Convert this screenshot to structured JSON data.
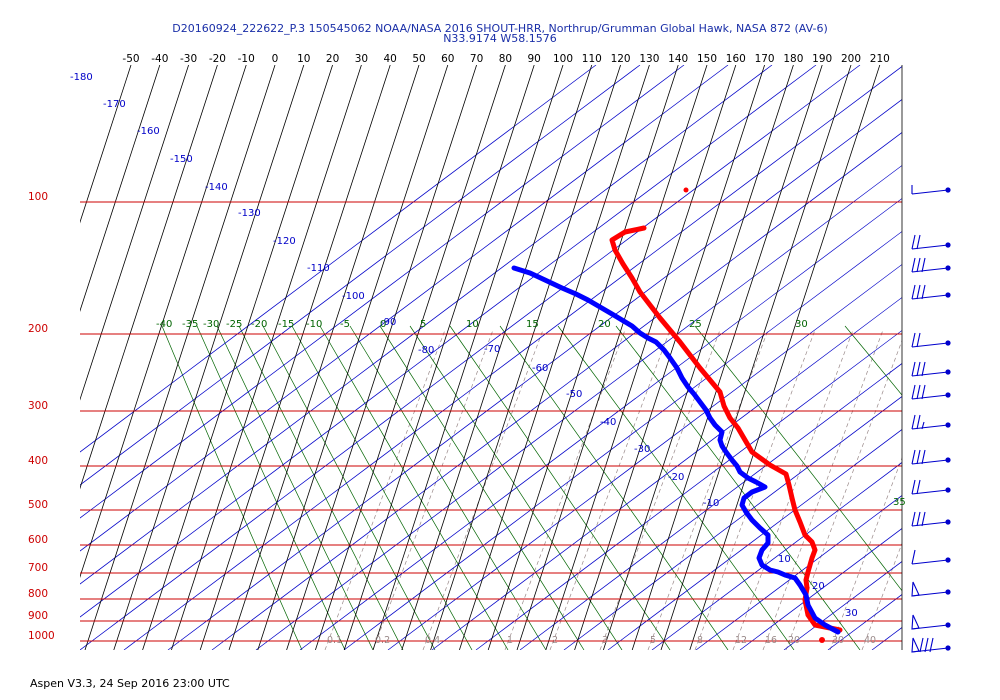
{
  "header": {
    "title": "D20160924_222622_P.3 150545062 NOAA/NASA 2016 SHOUT-HRR, Northrup/Grumman Global Hawk, NASA 872 (AV-6)",
    "location": "N33.9174 W58.1576"
  },
  "footer": {
    "text": "Aspen V3.3, 24 Sep 2016  23:00 UTC"
  },
  "chart_data": {
    "type": "line",
    "title": "",
    "colors": {
      "temperature": "#ff0000",
      "dewpoint": "#0000ff",
      "isobar": "#cc0000",
      "isotherm": "#000000",
      "dry_adiabat": "#0000c8",
      "moist_adiabat": "#006400",
      "mixing_ratio": "#9a8a8a",
      "wind_barb": "#0000cc"
    },
    "temperature_axis_labels": [
      "-50",
      "-40",
      "-30",
      "-20",
      "-10",
      "0",
      "10",
      "20",
      "30",
      "40",
      "50",
      "60",
      "70",
      "80",
      "90",
      "100",
      "110",
      "120",
      "130",
      "140",
      "150",
      "160",
      "170",
      "180",
      "190",
      "200",
      "210"
    ],
    "pressure_axis_labels": [
      "100",
      "200",
      "300",
      "400",
      "500",
      "600",
      "700",
      "800",
      "900",
      "1000"
    ],
    "dry_adiabat_labels": [
      "-180",
      "-170",
      "-160",
      "-150",
      "-140",
      "-130",
      "-120",
      "-110",
      "-100",
      "-90",
      "-80",
      "-70",
      "-60",
      "-50",
      "-40",
      "-30",
      "-20",
      "-10",
      "10",
      "20",
      "30"
    ],
    "moist_adiabat_labels": [
      "-40",
      "-35",
      "-30",
      "-25",
      "-20",
      "-15",
      "-10",
      "-5",
      "0",
      "5",
      "10",
      "15",
      "20",
      "25",
      "30",
      "35"
    ],
    "mixing_ratio_labels": [
      "0.1",
      "0.2",
      "0.4",
      "1",
      "2",
      "3",
      "5",
      "8",
      "12",
      "16",
      "20",
      "30",
      "40"
    ],
    "series": [
      {
        "name": "temperature",
        "points": [
          [
            840,
            630
          ],
          [
            815,
            625
          ],
          [
            808,
            615
          ],
          [
            805,
            600
          ],
          [
            807,
            588
          ],
          [
            806,
            580
          ],
          [
            808,
            572
          ],
          [
            810,
            565
          ],
          [
            812,
            558
          ],
          [
            815,
            550
          ],
          [
            812,
            542
          ],
          [
            805,
            535
          ],
          [
            800,
            522
          ],
          [
            795,
            510
          ],
          [
            792,
            498
          ],
          [
            789,
            485
          ],
          [
            786,
            474
          ],
          [
            770,
            465
          ],
          [
            752,
            452
          ],
          [
            745,
            440
          ],
          [
            738,
            428
          ],
          [
            730,
            418
          ],
          [
            724,
            406
          ],
          [
            720,
            392
          ],
          [
            710,
            380
          ],
          [
            700,
            368
          ],
          [
            690,
            355
          ],
          [
            680,
            342
          ],
          [
            670,
            330
          ],
          [
            660,
            318
          ],
          [
            650,
            305
          ],
          [
            640,
            292
          ],
          [
            632,
            278
          ],
          [
            623,
            264
          ],
          [
            615,
            250
          ],
          [
            612,
            240
          ],
          [
            625,
            232
          ],
          [
            644,
            228
          ]
        ]
      },
      {
        "name": "dewpoint",
        "points": [
          [
            838,
            632
          ],
          [
            825,
            625
          ],
          [
            815,
            618
          ],
          [
            808,
            605
          ],
          [
            806,
            595
          ],
          [
            800,
            585
          ],
          [
            795,
            578
          ],
          [
            785,
            575
          ],
          [
            778,
            572
          ],
          [
            770,
            570
          ],
          [
            762,
            565
          ],
          [
            759,
            558
          ],
          [
            762,
            550
          ],
          [
            768,
            543
          ],
          [
            768,
            535
          ],
          [
            760,
            528
          ],
          [
            752,
            520
          ],
          [
            746,
            512
          ],
          [
            742,
            505
          ],
          [
            744,
            498
          ],
          [
            752,
            492
          ],
          [
            765,
            487
          ],
          [
            756,
            482
          ],
          [
            748,
            478
          ],
          [
            740,
            472
          ],
          [
            737,
            466
          ],
          [
            732,
            460
          ],
          [
            726,
            452
          ],
          [
            722,
            446
          ],
          [
            720,
            440
          ],
          [
            722,
            432
          ],
          [
            715,
            425
          ],
          [
            710,
            418
          ],
          [
            706,
            410
          ],
          [
            700,
            402
          ],
          [
            694,
            394
          ],
          [
            688,
            387
          ],
          [
            682,
            378
          ],
          [
            677,
            368
          ],
          [
            670,
            358
          ],
          [
            664,
            350
          ],
          [
            656,
            342
          ],
          [
            648,
            338
          ],
          [
            640,
            333
          ],
          [
            632,
            326
          ],
          [
            622,
            320
          ],
          [
            612,
            314
          ],
          [
            600,
            307
          ],
          [
            588,
            300
          ],
          [
            576,
            294
          ],
          [
            562,
            288
          ],
          [
            545,
            280
          ],
          [
            530,
            273
          ],
          [
            514,
            268
          ]
        ]
      }
    ],
    "wind_barbs": [
      {
        "y": 190,
        "half": 0,
        "full": 0,
        "flags": 0
      },
      {
        "y": 245,
        "half": 0,
        "full": 2,
        "flags": 0
      },
      {
        "y": 268,
        "half": 0,
        "full": 3,
        "flags": 0
      },
      {
        "y": 295,
        "half": 0,
        "full": 3,
        "flags": 0
      },
      {
        "y": 343,
        "half": 0,
        "full": 2,
        "flags": 0
      },
      {
        "y": 372,
        "half": 0,
        "full": 3,
        "flags": 0
      },
      {
        "y": 395,
        "half": 0,
        "full": 3,
        "flags": 0
      },
      {
        "y": 425,
        "half": 1,
        "full": 2,
        "flags": 0
      },
      {
        "y": 460,
        "half": 0,
        "full": 3,
        "flags": 0
      },
      {
        "y": 490,
        "half": 0,
        "full": 2,
        "flags": 0
      },
      {
        "y": 522,
        "half": 0,
        "full": 3,
        "flags": 0
      },
      {
        "y": 560,
        "half": 0,
        "full": 1,
        "flags": 0
      },
      {
        "y": 592,
        "half": 0,
        "full": 0,
        "flags": 1
      },
      {
        "y": 625,
        "half": 0,
        "full": 0,
        "flags": 1
      },
      {
        "y": 648,
        "half": 0,
        "full": 3,
        "flags": 1
      }
    ]
  }
}
